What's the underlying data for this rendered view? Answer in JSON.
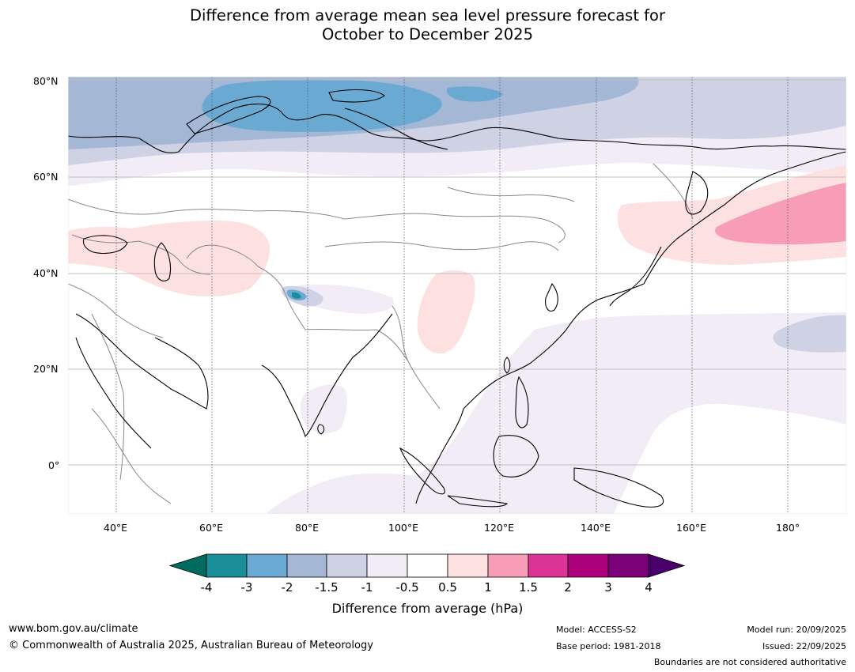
{
  "title": {
    "line1": "Difference from average mean sea level pressure forecast for",
    "line2": "October to December 2025"
  },
  "axes": {
    "lat_labels": [
      "80°N",
      "60°N",
      "40°N",
      "20°N",
      "0°"
    ],
    "lon_labels": [
      "40°E",
      "60°E",
      "80°E",
      "100°E",
      "120°E",
      "140°E",
      "160°E",
      "180°"
    ]
  },
  "colors": {
    "neg4": "#006b5e",
    "neg3_4": "#1a8f9a",
    "neg2_3": "#6aa9d1",
    "neg15_2": "#a4b8d6",
    "neg1_15": "#cfd1e4",
    "neg05_1": "#f1ecf5",
    "neutral": "#ffffff",
    "pos05_1": "#fde0e0",
    "pos1_15": "#f79db7",
    "pos15_2": "#dd3497",
    "pos2_3": "#ae017e",
    "pos3_4": "#7a0177",
    "pos4": "#49006a"
  },
  "colorbar": {
    "ticks": [
      "-4",
      "-3",
      "-2",
      "-1.5",
      "-1",
      "-0.5",
      "0.5",
      "1",
      "1.5",
      "2",
      "3",
      "4"
    ],
    "label": "Difference from average (hPa)"
  },
  "footer": {
    "website": "www.bom.gov.au/climate",
    "copyright": "© Commonwealth of Australia 2025, Australian Bureau of Meteorology",
    "model": "Model: ACCESS-S2",
    "base_period": "Base period: 1981-2018",
    "model_run": "Model run: 20/09/2025",
    "issued": "Issued: 22/09/2025",
    "disclaimer": "Boundaries are not considered authoritative"
  }
}
